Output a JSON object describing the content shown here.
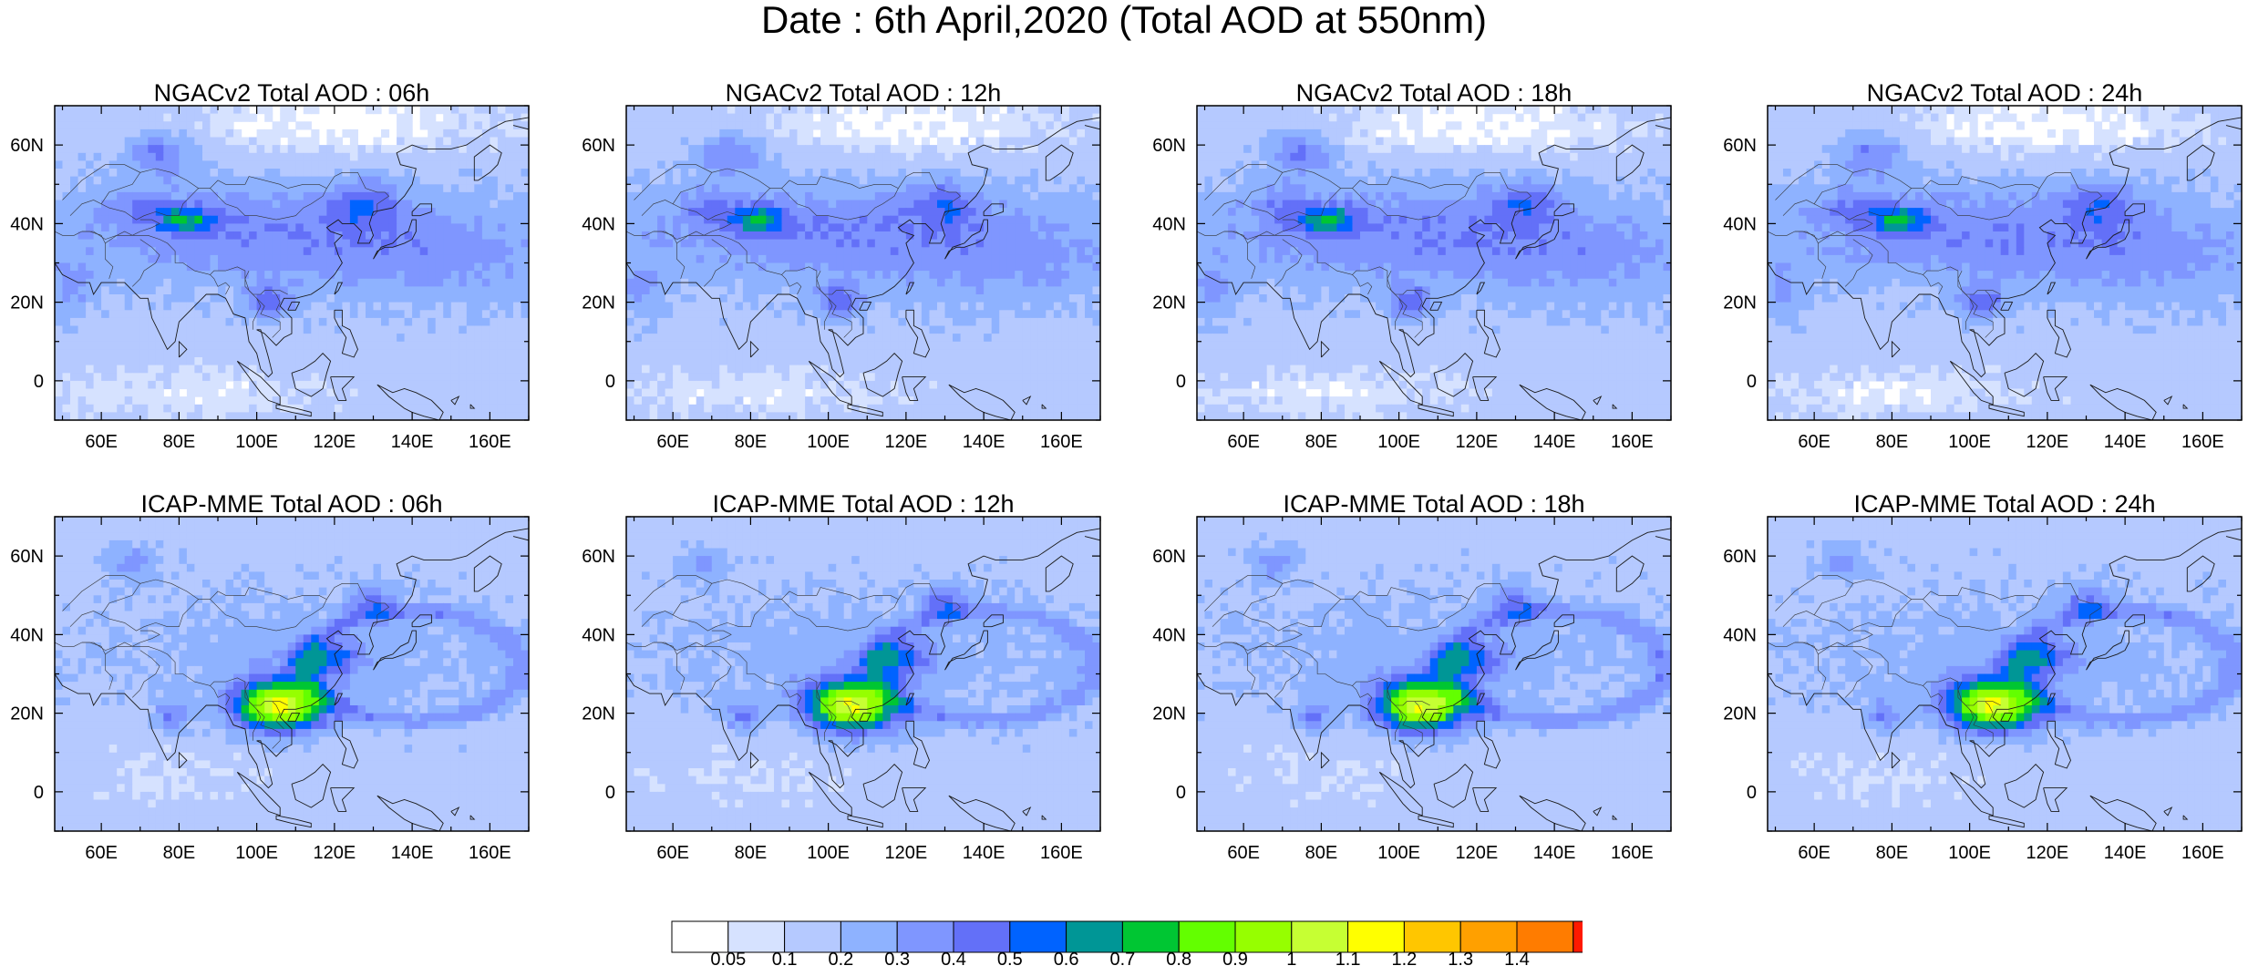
{
  "title": "Date : 6th April,2020 (Total AOD at 550nm)",
  "lat_ticks": [
    "60N",
    "40N",
    "20N",
    "0"
  ],
  "lat_values": [
    60,
    40,
    20,
    0
  ],
  "lon_ticks": [
    "60E",
    "80E",
    "100E",
    "120E",
    "140E",
    "160E"
  ],
  "lon_values": [
    60,
    80,
    100,
    120,
    140,
    160
  ],
  "map_extent": {
    "lon": [
      48,
      170
    ],
    "lat": [
      -10,
      70
    ]
  },
  "panels": [
    {
      "title": "NGACv2 Total AOD : 06h",
      "model": "NGACv2",
      "hour": "06h"
    },
    {
      "title": "NGACv2 Total AOD : 12h",
      "model": "NGACv2",
      "hour": "12h"
    },
    {
      "title": "NGACv2 Total AOD : 18h",
      "model": "NGACv2",
      "hour": "18h"
    },
    {
      "title": "NGACv2 Total AOD : 24h",
      "model": "NGACv2",
      "hour": "24h"
    },
    {
      "title": "ICAP-MME Total AOD : 06h",
      "model": "ICAP-MME",
      "hour": "06h"
    },
    {
      "title": "ICAP-MME Total AOD : 12h",
      "model": "ICAP-MME",
      "hour": "12h"
    },
    {
      "title": "ICAP-MME Total AOD : 18h",
      "model": "ICAP-MME",
      "hour": "18h"
    },
    {
      "title": "ICAP-MME Total AOD : 24h",
      "model": "ICAP-MME",
      "hour": "24h"
    }
  ],
  "colorbar": {
    "labels": [
      "0.05",
      "0.1",
      "0.2",
      "0.3",
      "0.4",
      "0.5",
      "0.6",
      "0.7",
      "0.8",
      "0.9",
      "1",
      "1.1",
      "1.2",
      "1.3",
      "1.4"
    ],
    "colors": [
      "#ffffff",
      "#d6e2ff",
      "#b5c9ff",
      "#8eb2ff",
      "#7f96ff",
      "#6370f8",
      "#0063ff",
      "#009696",
      "#00c633",
      "#63ff00",
      "#96ff00",
      "#c6ff33",
      "#ffff00",
      "#ffc600",
      "#ffa000",
      "#ff7c00",
      "#ff1900"
    ]
  }
}
